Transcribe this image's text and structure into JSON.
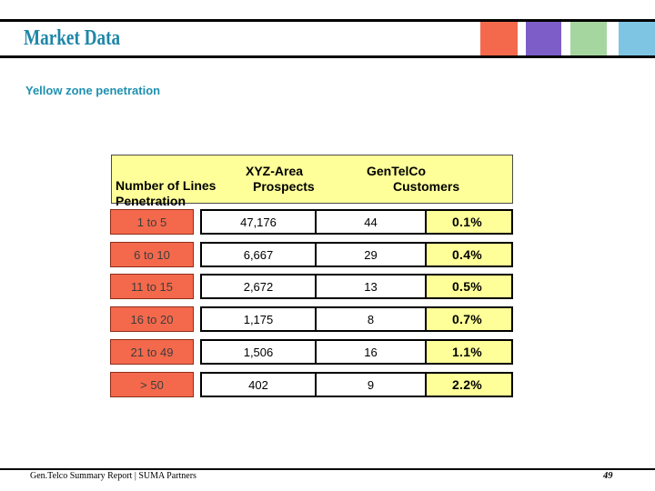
{
  "slide": {
    "title": "Market Data",
    "subtitle": "Yellow zone penetration",
    "footer_text": "Gen.Telco Summary Report | SUMA Partners",
    "page_number": "49"
  },
  "accent_bar": {
    "squares": [
      {
        "name": "orange-square",
        "color": "#f4694c"
      },
      {
        "name": "purple-square",
        "color": "#7d5ec8"
      },
      {
        "name": "green-square",
        "color": "#a6d69f"
      },
      {
        "name": "blue-square",
        "color": "#7ec5e4"
      }
    ]
  },
  "table": {
    "corner_header": {
      "line1": "Number of Lines",
      "line2": "Penetration"
    },
    "col_headers": [
      {
        "line1": "XYZ-Area",
        "line2": "Prospects"
      },
      {
        "line1": "GenTelCo",
        "line2": "Customers"
      }
    ],
    "rows": [
      {
        "label": "1 to 5",
        "prospects": "47,176",
        "customers": "44",
        "penetration": "0.1%"
      },
      {
        "label": "6 to 10",
        "prospects": "6,667",
        "customers": "29",
        "penetration": "0.4%"
      },
      {
        "label": "11 to 15",
        "prospects": "2,672",
        "customers": "13",
        "penetration": "0.5%"
      },
      {
        "label": "16 to 20",
        "prospects": "1,175",
        "customers": "8",
        "penetration": "0.7%"
      },
      {
        "label": "21 to 49",
        "prospects": "1,506",
        "customers": "16",
        "penetration": "1.1%"
      },
      {
        "label": "> 50",
        "prospects": "402",
        "customers": "9",
        "penetration": "2.2%"
      }
    ]
  },
  "colors": {
    "title_teal": "#1f86a8",
    "subtitle_teal": "#1e90b0",
    "header_yellow": "#ffff99",
    "row_label_orange": "#f4694c",
    "rule_black": "#000000"
  }
}
